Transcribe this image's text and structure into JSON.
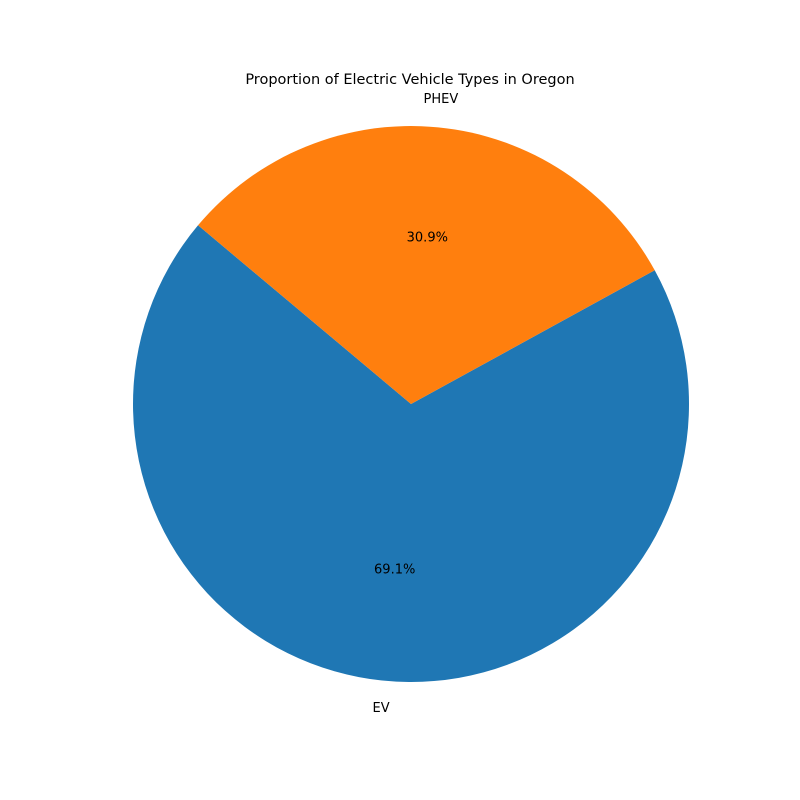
{
  "chart_data": {
    "type": "pie",
    "title": "Proportion of Electric Vehicle Types in Oregon",
    "slices": [
      {
        "label": "EV",
        "value": 69.1,
        "pct_label": "69.1%",
        "color": "#1f77b4"
      },
      {
        "label": "PHEV",
        "value": 30.9,
        "pct_label": "30.9%",
        "color": "#ff7f0e"
      }
    ],
    "legend": "none"
  }
}
